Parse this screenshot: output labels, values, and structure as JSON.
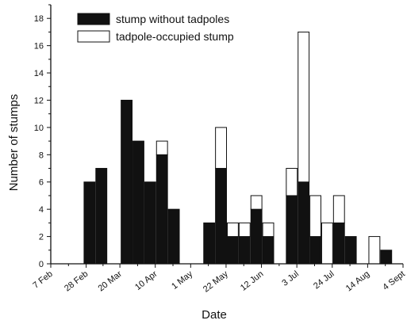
{
  "chart_data": {
    "type": "bar",
    "stacked": true,
    "xlabel": "Date",
    "ylabel": "Number of stumps",
    "ylim": [
      0,
      19
    ],
    "y_ticks": [
      0,
      2,
      4,
      6,
      8,
      10,
      12,
      14,
      16,
      18
    ],
    "x_ticks": [
      "7 Feb",
      "28 Feb",
      "20 Mar",
      "10 Apr",
      "1 May",
      "22 May",
      "12 Jun",
      "3 Jul",
      "24 Jul",
      "14 Aug",
      "4 Sept"
    ],
    "series": [
      {
        "name": "stump without tadpoles",
        "color": "#111111"
      },
      {
        "name": "tadpole-occupied stump",
        "color": "#ffffff"
      }
    ],
    "legend_position": "top-center",
    "bars": [
      {
        "date": "2 Mar",
        "without_tadpoles": 6,
        "tadpole_occupied": 0
      },
      {
        "date": "9 Mar",
        "without_tadpoles": 7,
        "tadpole_occupied": 0
      },
      {
        "date": "24 Mar",
        "without_tadpoles": 12,
        "tadpole_occupied": 0
      },
      {
        "date": "31 Mar",
        "without_tadpoles": 9,
        "tadpole_occupied": 0
      },
      {
        "date": "7 Apr",
        "without_tadpoles": 6,
        "tadpole_occupied": 0
      },
      {
        "date": "14 Apr",
        "without_tadpoles": 8,
        "tadpole_occupied": 1
      },
      {
        "date": "21 Apr",
        "without_tadpoles": 4,
        "tadpole_occupied": 0
      },
      {
        "date": "12 May",
        "without_tadpoles": 3,
        "tadpole_occupied": 0
      },
      {
        "date": "19 May",
        "without_tadpoles": 7,
        "tadpole_occupied": 3
      },
      {
        "date": "26 May",
        "without_tadpoles": 2,
        "tadpole_occupied": 1
      },
      {
        "date": "2 Jun",
        "without_tadpoles": 2,
        "tadpole_occupied": 1
      },
      {
        "date": "9 Jun",
        "without_tadpoles": 4,
        "tadpole_occupied": 1
      },
      {
        "date": "16 Jun",
        "without_tadpoles": 2,
        "tadpole_occupied": 1
      },
      {
        "date": "30 Jun",
        "without_tadpoles": 5,
        "tadpole_occupied": 2
      },
      {
        "date": "7 Jul",
        "without_tadpoles": 6,
        "tadpole_occupied": 11
      },
      {
        "date": "14 Jul",
        "without_tadpoles": 2,
        "tadpole_occupied": 3
      },
      {
        "date": "21 Jul",
        "without_tadpoles": 0,
        "tadpole_occupied": 3
      },
      {
        "date": "28 Jul",
        "without_tadpoles": 3,
        "tadpole_occupied": 2
      },
      {
        "date": "4 Aug",
        "without_tadpoles": 2,
        "tadpole_occupied": 0
      },
      {
        "date": "18 Aug",
        "without_tadpoles": 0,
        "tadpole_occupied": 2
      },
      {
        "date": "25 Aug",
        "without_tadpoles": 1,
        "tadpole_occupied": 0
      }
    ]
  }
}
